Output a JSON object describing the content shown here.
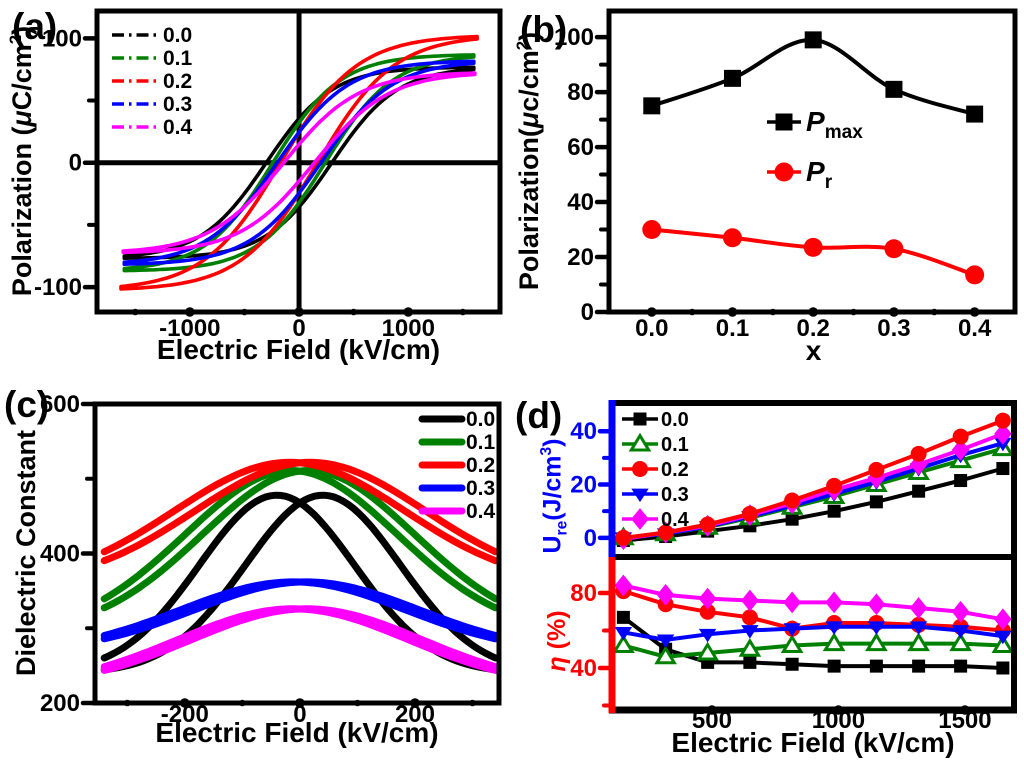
{
  "figure_title": "Ferroelectric polarization, dielectric and energy-storage figure",
  "chart_data": [
    {
      "id": "a",
      "type": "hysteresis-loops",
      "panel_letter": "(a)",
      "xlabel": "Electric Field (kV/cm)",
      "ylabel_parts": [
        {
          "t": "Polarization ("
        },
        {
          "t": "μ",
          "italic": true
        },
        {
          "t": "C/cm"
        },
        {
          "t": "2",
          "sup": true
        },
        {
          "t": ")"
        }
      ],
      "xlim": [
        -1850,
        1840
      ],
      "ylim": [
        -120,
        122
      ],
      "xticks": [
        -1000,
        0,
        1000
      ],
      "xtick_labels": [
        "-1000",
        "0",
        "1000"
      ],
      "xminor": [
        -1500,
        -500,
        500,
        1500
      ],
      "yticks": [
        -100,
        0,
        100
      ],
      "ytick_labels": [
        "-100",
        "0",
        "100"
      ],
      "yminor": [
        -50,
        50
      ],
      "origin_cross": true,
      "legend_position": "top-left",
      "series": [
        {
          "name": "0.0",
          "color": "#000000",
          "pmax": 75,
          "pr": 30,
          "ec": 300,
          "ew": 600,
          "emax": 1600
        },
        {
          "name": "0.1",
          "color": "#008000",
          "pmax": 85,
          "pr": 27,
          "ec": 240,
          "ew": 620,
          "emax": 1600
        },
        {
          "name": "0.2",
          "color": "#ff0000",
          "pmax": 99.5,
          "pr": 23.5,
          "ec": 170,
          "ew": 700,
          "emax": 1630
        },
        {
          "name": "0.3",
          "color": "#0000ff",
          "pmax": 80,
          "pr": 23,
          "ec": 200,
          "ew": 650,
          "emax": 1600
        },
        {
          "name": "0.4",
          "color": "#ff00ff",
          "pmax": 71,
          "pr": 13.5,
          "ec": 140,
          "ew": 680,
          "emax": 1610
        }
      ]
    },
    {
      "id": "b",
      "type": "line",
      "panel_letter": "(b)",
      "xlabel": "x",
      "ylabel_parts": [
        {
          "t": "Polarization("
        },
        {
          "t": "μ",
          "italic": true
        },
        {
          "t": "c/cm"
        },
        {
          "t": "2",
          "sup": true
        },
        {
          "t": ")"
        }
      ],
      "xlim": [
        -0.053,
        0.45
      ],
      "ylim": [
        0,
        109.5
      ],
      "xticks": [
        0,
        0.1,
        0.2,
        0.3,
        0.4
      ],
      "xtick_labels": [
        "0.0",
        "0.1",
        "0.2",
        "0.3",
        "0.4"
      ],
      "xminor": [
        0.05,
        0.15,
        0.25,
        0.35
      ],
      "yticks": [
        0,
        20,
        40,
        60,
        80,
        100
      ],
      "ytick_labels": [
        "0",
        "20",
        "40",
        "60",
        "80",
        "100"
      ],
      "yminor": [
        10,
        30,
        50,
        70,
        90
      ],
      "x": [
        0,
        0.1,
        0.2,
        0.3,
        0.4
      ],
      "legend_position": "center",
      "series": [
        {
          "name_parts": [
            {
              "t": "P",
              "italic": true
            },
            {
              "t": "max",
              "sub": true
            }
          ],
          "color": "#000000",
          "marker": "square",
          "marker_size": 17,
          "smooth": true,
          "values": [
            75,
            85,
            99,
            81,
            72
          ]
        },
        {
          "name_parts": [
            {
              "t": "P",
              "italic": true
            },
            {
              "t": "r",
              "sub": true
            }
          ],
          "color": "#ff0000",
          "marker": "circle",
          "marker_size": 19,
          "smooth": true,
          "values": [
            30,
            27,
            23.5,
            23,
            13.5
          ]
        }
      ]
    },
    {
      "id": "c",
      "type": "bell-loops",
      "panel_letter": "(c)",
      "xlabel": "Electric Field (kV/cm)",
      "ylabel": "Dielectric Constant",
      "xlim": [
        -356,
        346
      ],
      "ylim": [
        200,
        600
      ],
      "x_range_data": [
        -340,
        340
      ],
      "xticks": [
        -200,
        0,
        200
      ],
      "xtick_labels": [
        "-200",
        "0",
        "200"
      ],
      "xminor": [
        -300,
        -100,
        100,
        300
      ],
      "yticks": [
        200,
        400,
        600
      ],
      "ytick_labels": [
        "200",
        "400",
        "600"
      ],
      "yminor": [
        300,
        500
      ],
      "legend_position": "top-right",
      "series": [
        {
          "name": "0.0",
          "color": "#000000",
          "peak": 478,
          "edge": 250,
          "offset": 40,
          "sigma": 135
        },
        {
          "name": "0.1",
          "color": "#008000",
          "peak": 511,
          "edge": 333,
          "offset": 15,
          "sigma": 185
        },
        {
          "name": "0.2",
          "color": "#ff0000",
          "peak": 522,
          "edge": 396,
          "offset": 18,
          "sigma": 200
        },
        {
          "name": "0.3",
          "color": "#0000ff",
          "peak": 362,
          "edge": 288,
          "offset": 12,
          "sigma": 195
        },
        {
          "name": "0.4",
          "color": "#ff00ff",
          "peak": 326,
          "edge": 246,
          "offset": 12,
          "sigma": 200
        }
      ]
    },
    {
      "id": "d_top",
      "type": "line",
      "panel_letter": "(d)",
      "ylabel_parts": [
        {
          "t": "U"
        },
        {
          "t": "re",
          "sub": true
        },
        {
          "t": "(J/cm"
        },
        {
          "t": "3",
          "sup": true
        },
        {
          "t": ")"
        }
      ],
      "ylabel_color": "#0000ff",
      "xlim": [
        105,
        1694
      ],
      "ylim": [
        -7.2,
        50.6
      ],
      "yticks": [
        0,
        20,
        40
      ],
      "ytick_labels": [
        "0",
        "20",
        "40"
      ],
      "yminor": [
        10,
        30
      ],
      "ytick_color": "#0000ff",
      "x": [
        150,
        317,
        483,
        650,
        817,
        983,
        1150,
        1317,
        1483,
        1650
      ],
      "draw_order": [
        0,
        1,
        3,
        4,
        2
      ],
      "legend_position": "top-left",
      "series": [
        {
          "name": "0.0",
          "color": "#000000",
          "marker": "square",
          "marker_size": 13,
          "values": [
            -1,
            0.5,
            2.5,
            4.5,
            7,
            10,
            13.5,
            17.5,
            21.5,
            26
          ]
        },
        {
          "name": "0.1",
          "color": "#008000",
          "marker": "triangle-up-open",
          "marker_size": 15,
          "values": [
            0,
            1.5,
            4,
            7.5,
            11.5,
            15.5,
            20,
            24.5,
            29,
            33.5
          ]
        },
        {
          "name": "0.2",
          "color": "#ff0000",
          "marker": "circle",
          "marker_size": 16,
          "values": [
            0,
            2,
            5,
            9,
            14,
            19.5,
            25.5,
            31.5,
            38,
            44
          ]
        },
        {
          "name": "0.3",
          "color": "#0000ff",
          "marker": "triangle-down",
          "marker_size": 15,
          "values": [
            0,
            1.5,
            4.2,
            8,
            12,
            16.5,
            21,
            26,
            31,
            35.5
          ]
        },
        {
          "name": "0.4",
          "color": "#ff00ff",
          "marker": "diamond",
          "marker_size": 16,
          "values": [
            -0.5,
            2,
            4.5,
            8.5,
            13,
            18,
            22.5,
            27.5,
            33,
            39
          ]
        }
      ]
    },
    {
      "id": "d_bot",
      "type": "line",
      "xlabel": "Electric Field (kV/cm)",
      "ylabel_parts": [
        {
          "t": "η",
          "italic": true
        },
        {
          "t": " (%)"
        }
      ],
      "ylabel_color": "#ff0000",
      "xlim": [
        105,
        1694
      ],
      "ylim": [
        17.6,
        99.2
      ],
      "xticks": [
        500,
        1000,
        1500
      ],
      "xtick_labels": [
        "500",
        "1000",
        "1500"
      ],
      "xminor": [
        250,
        750,
        1250
      ],
      "yticks": [
        40,
        80
      ],
      "ytick_labels": [
        "40",
        "80"
      ],
      "yminor": [
        20,
        60
      ],
      "ytick_color": "#ff0000",
      "x": [
        150,
        317,
        483,
        650,
        817,
        983,
        1150,
        1317,
        1483,
        1650
      ],
      "series": [
        {
          "name": "0.0",
          "color": "#000000",
          "marker": "square",
          "marker_size": 13,
          "values": [
            67,
            50,
            43,
            43,
            42,
            41,
            41,
            41,
            41,
            40
          ]
        },
        {
          "name": "0.1",
          "color": "#008000",
          "marker": "triangle-up-open",
          "marker_size": 15,
          "values": [
            52,
            46,
            48,
            50,
            52,
            53,
            53,
            53,
            53,
            52
          ]
        },
        {
          "name": "0.2",
          "color": "#ff0000",
          "marker": "circle",
          "marker_size": 16,
          "values": [
            81,
            74,
            70,
            67,
            61,
            64,
            64,
            63,
            62,
            60
          ]
        },
        {
          "name": "0.3",
          "color": "#0000ff",
          "marker": "triangle-down",
          "marker_size": 15,
          "values": [
            59,
            55,
            58,
            60,
            61,
            62,
            62,
            62,
            60,
            57
          ]
        },
        {
          "name": "0.4",
          "color": "#ff00ff",
          "marker": "diamond",
          "marker_size": 16,
          "values": [
            84,
            79,
            77,
            76,
            75,
            75,
            74,
            72,
            70,
            66
          ]
        }
      ]
    }
  ]
}
